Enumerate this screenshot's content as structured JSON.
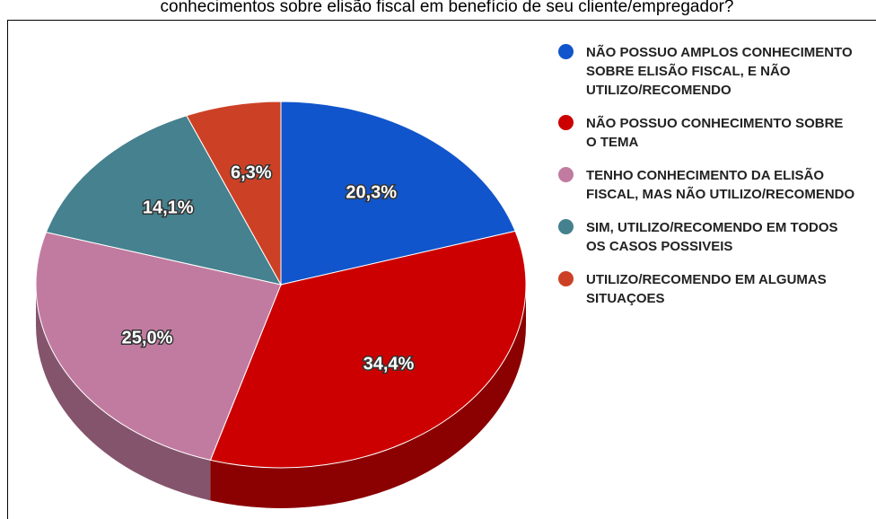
{
  "chart_data": {
    "type": "pie",
    "title": "conhecimentos sobre elisão fiscal em benefício de seu cliente/empregador?",
    "categories": [
      "NÃO POSSUO AMPLOS CONHECIMENTO SOBRE ELISÃO FISCAL, E  NÃO UTILIZO/RECOMENDO",
      "NÃO POSSUO CONHECIMENTO SOBRE O TEMA",
      "TENHO CONHECIMENTO DA ELISÃO FISCAL, MAS NÃO UTILIZO/RECOMENDO",
      "SIM, UTILIZO/RECOMENDO EM TODOS OS CASOS POSSIVEIS",
      "UTILIZO/RECOMENDO EM ALGUMAS SITUAÇOES"
    ],
    "values": [
      20.3,
      34.4,
      25.0,
      14.1,
      6.3
    ],
    "value_labels": [
      "20,3%",
      "34,4%",
      "25,0%",
      "14,1%",
      "6,3%"
    ],
    "colors": [
      "#1155cc",
      "#cc0000",
      "#c27ba0",
      "#45818e",
      "#cc4125"
    ],
    "legend": "right"
  }
}
